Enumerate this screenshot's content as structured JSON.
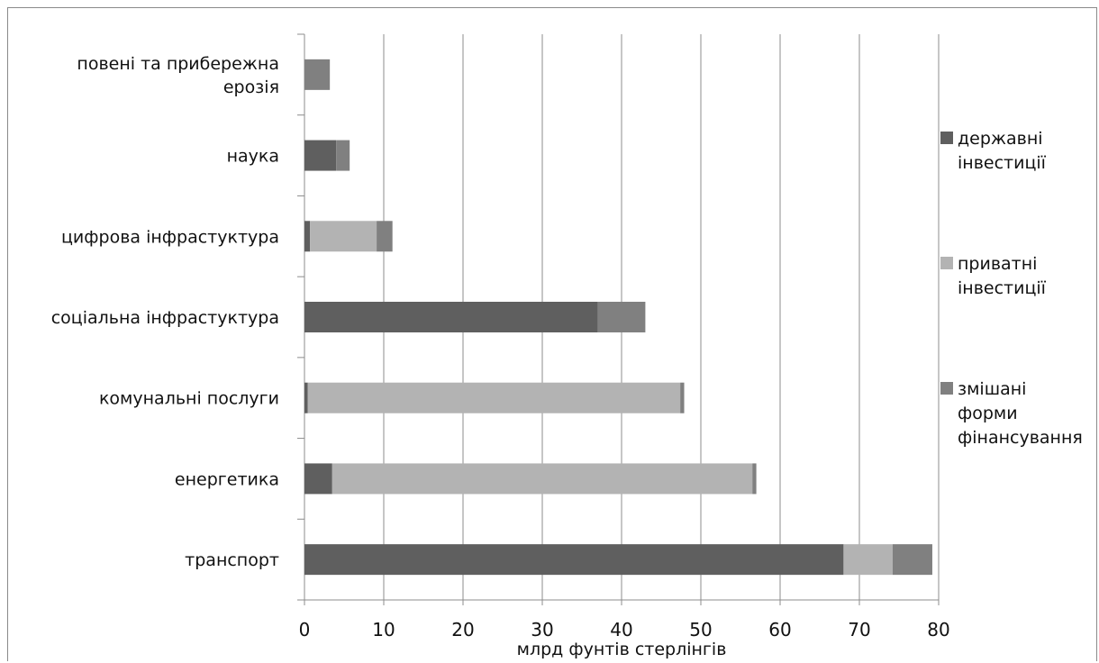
{
  "chart_data": {
    "type": "bar",
    "orientation": "horizontal",
    "stacked": true,
    "categories": [
      [
        "повені та прибережна",
        "ерозія"
      ],
      [
        "наука"
      ],
      [
        "цифрова інфрастуктура"
      ],
      [
        "соціальна інфрастуктура"
      ],
      [
        "комунальні послуги"
      ],
      [
        "енергетика"
      ],
      [
        "транспорт"
      ]
    ],
    "series": [
      {
        "name": [
          "державні",
          "інвестиції"
        ],
        "color": "#5f5f5f",
        "values": [
          0,
          4,
          0.7,
          37,
          0.4,
          3.5,
          68
        ]
      },
      {
        "name": [
          "приватні",
          "інвестиції"
        ],
        "color": "#b3b3b3",
        "values": [
          0,
          0,
          8.4,
          0,
          47,
          53,
          6.2
        ]
      },
      {
        "name": [
          "змішані",
          "форми",
          "фінансування"
        ],
        "color": "#808080",
        "values": [
          3.2,
          1.7,
          2,
          6,
          0.5,
          0.5,
          5
        ]
      }
    ],
    "xlim": [
      0,
      80
    ],
    "xticks": [
      0,
      10,
      20,
      30,
      40,
      50,
      60,
      70,
      80
    ],
    "xlabel": "млрд фунтів стерлінгів",
    "grid": "vertical",
    "legend": "right"
  }
}
